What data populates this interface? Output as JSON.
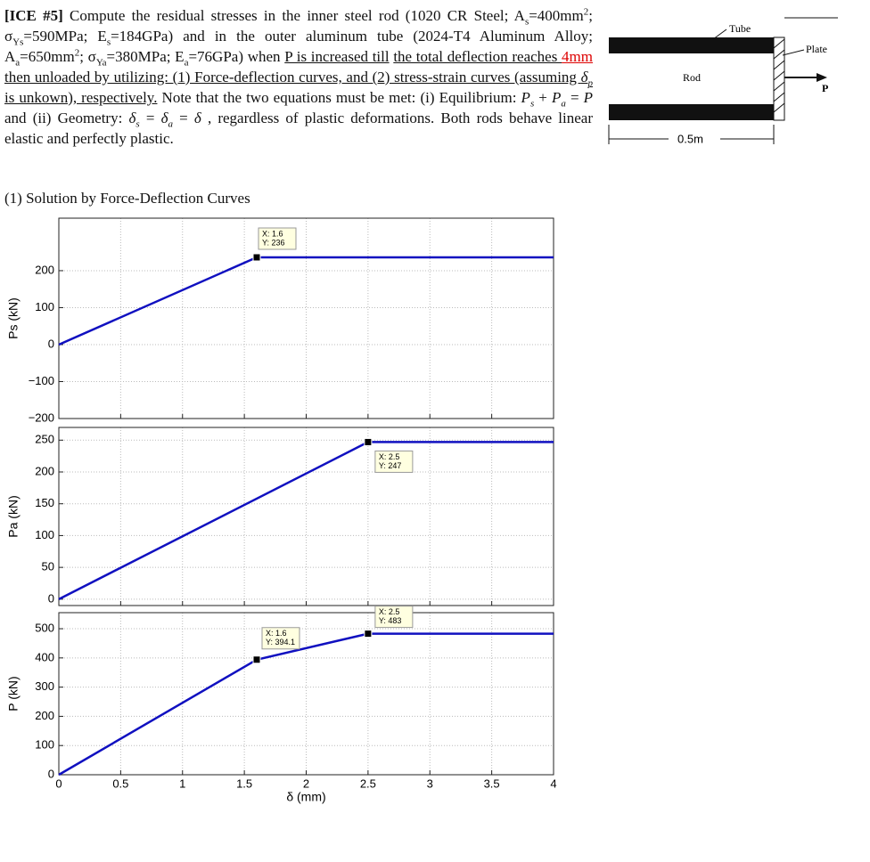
{
  "problem": {
    "text": [
      "[ICE #5]",
      " Compute the residual stresses in the inner steel rod (1020 CR Steel; A",
      "s",
      "=400mm",
      "2",
      "; σ",
      "Ys",
      "=590MPa; E",
      "s",
      "=184GPa) and in the outer aluminum tube (2024-T4 Aluminum Alloy; A",
      "a",
      "=650mm",
      "2",
      "; σ",
      "Ya",
      "=380MPa; E",
      "a",
      "=76GPa) when ",
      "P is increased till",
      "the total deflection reaches ",
      "4mm",
      "then unloaded by utilizing: (1) Force-deflection curves, and (2) stress-strain curves (assuming ",
      "δ",
      "p",
      " is unkown), respectively.",
      " Note that the two equations must be met: (i) Equilibrium: ",
      "P",
      "s",
      " + ",
      "P",
      "a",
      " = ",
      "P",
      " and (ii) Geometry: ",
      "δ",
      "s",
      " = ",
      "δ",
      "a",
      " = ",
      "δ",
      " , regardless of plastic deformations. Both rods behave linear elastic and perfectly plastic."
    ],
    "section": "(1) Solution by Force-Deflection Curves"
  },
  "figure": {
    "tube": "Tube",
    "plate": "Plate",
    "rod": "Rod",
    "force": "P",
    "length": "0.5m"
  },
  "chart_data": [
    {
      "type": "line",
      "ylabel": "Ps (kN)",
      "x": [
        0,
        1.6,
        4
      ],
      "values": [
        0,
        236,
        236
      ],
      "color": "#1010c0",
      "xlim": [
        0,
        4
      ],
      "ylim": [
        -200,
        342
      ],
      "xticks": [
        0,
        0.5,
        1,
        1.5,
        2,
        2.5,
        3,
        3.5,
        4
      ],
      "show_xtick_labels": false,
      "yticks": [
        {
          "value": -200,
          "label": "−200"
        },
        {
          "value": -100,
          "label": "−100"
        },
        0,
        100,
        200
      ],
      "grid": true,
      "annotations": [
        {
          "x": 1.6,
          "y": 236,
          "text": [
            "X: 1.6",
            "Y: 236"
          ]
        }
      ]
    },
    {
      "type": "line",
      "ylabel": "Pa (kN)",
      "x": [
        0,
        2.5,
        4
      ],
      "values": [
        0,
        247,
        247
      ],
      "color": "#1010c0",
      "xlim": [
        0,
        4
      ],
      "ylim": [
        -10,
        270
      ],
      "xticks": [
        0,
        0.5,
        1,
        1.5,
        2,
        2.5,
        3,
        3.5,
        4
      ],
      "show_xtick_labels": false,
      "yticks": [
        0,
        50,
        100,
        150,
        200,
        250
      ],
      "grid": true,
      "annotations": [
        {
          "x": 2.5,
          "y": 247,
          "text": [
            "X: 2.5",
            "Y: 247"
          ]
        }
      ]
    },
    {
      "type": "line",
      "ylabel": "P (kN)",
      "xlabel": "δ (mm)",
      "x": [
        0,
        1.6,
        2.5,
        4
      ],
      "values": [
        0,
        394.1,
        483,
        483
      ],
      "color": "#1010c0",
      "xlim": [
        0,
        4
      ],
      "ylim": [
        0,
        555
      ],
      "xticks": [
        0,
        0.5,
        1,
        1.5,
        2,
        2.5,
        3,
        3.5,
        4
      ],
      "show_xtick_labels": true,
      "yticks": [
        0,
        100,
        200,
        300,
        400,
        500
      ],
      "grid": true,
      "annotations": [
        {
          "x": 1.6,
          "y": 394.1,
          "text": [
            "X: 1.6",
            "Y: 394.1"
          ]
        },
        {
          "x": 2.5,
          "y": 483,
          "text": [
            "X: 2.5",
            "Y: 483"
          ]
        }
      ]
    }
  ]
}
